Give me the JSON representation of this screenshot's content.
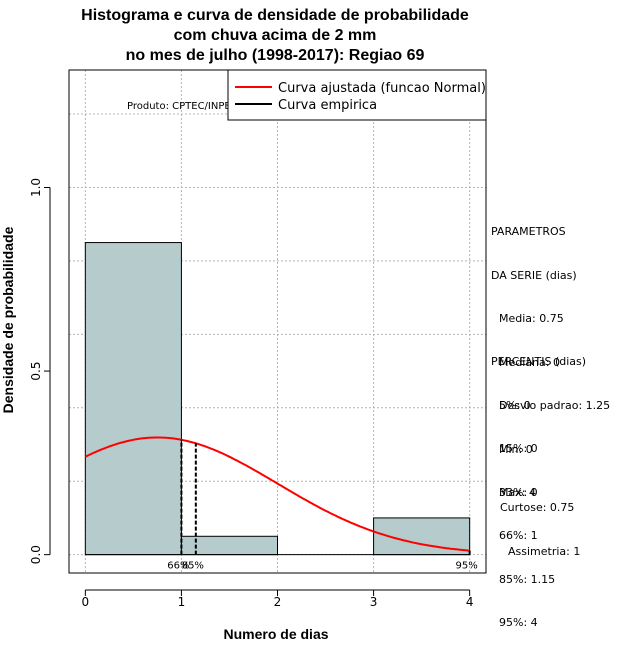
{
  "chart_data": {
    "type": "bar",
    "title": [
      "Histograma e curva de densidade de probabilidade",
      "com chuva acima de 2 mm",
      "no mes de julho (1998-2017): Regiao 69"
    ],
    "xlabel": "Numero de dias",
    "ylabel": "Densidade de probabilidade",
    "xlim": [
      -0.17,
      4.17
    ],
    "ylim": [
      -0.05,
      1.32
    ],
    "xticks": [
      "0",
      "1",
      "2",
      "3",
      "4"
    ],
    "yticks": [
      "0.0",
      "0.5",
      "1.0"
    ],
    "grid": true,
    "bins": [
      {
        "start": 0,
        "end": 1,
        "density": 0.85
      },
      {
        "start": 1,
        "end": 2,
        "density": 0.05
      },
      {
        "start": 2,
        "end": 3,
        "density": 0.0
      },
      {
        "start": 3,
        "end": 4,
        "density": 0.1
      }
    ],
    "normal_fit": {
      "mean": 0.75,
      "sd": 1.25,
      "x_from": 0,
      "x_to": 4
    },
    "percentile_lines": [
      {
        "label": "66%",
        "x": 1.0
      },
      {
        "label": "85%",
        "x": 1.15
      },
      {
        "label": "95%",
        "x": 4.0
      }
    ],
    "legend": {
      "position": "top-right",
      "entries": [
        {
          "label": "Curva ajustada (funcao Normal)",
          "color": "#ff0000"
        },
        {
          "label": "Curva empirica",
          "color": "#000000"
        }
      ]
    },
    "annotation": "Produto: CPTEC/INPE",
    "colors": {
      "bar_fill": "#b6cccc",
      "fit_line": "#ff0000",
      "grid": "#b4b4b4"
    }
  },
  "parametros": {
    "title": "PARAMETROS",
    "subtitle": "DA SERIE (dias)",
    "items": [
      "Media: 0.75",
      "Mediana: 0",
      "Desvio padrao: 1.25",
      "Min: 0",
      "Max: 4"
    ]
  },
  "percentis": {
    "title": "PERCENTIS (dias)",
    "items": [
      "5%: 0",
      "15%: 0",
      "33%: 0",
      "66%: 1",
      "85%: 1.15",
      "95%: 4"
    ]
  },
  "forma": {
    "curtose": "Curtose: 0.75",
    "assimetria": "Assimetria: 1"
  }
}
